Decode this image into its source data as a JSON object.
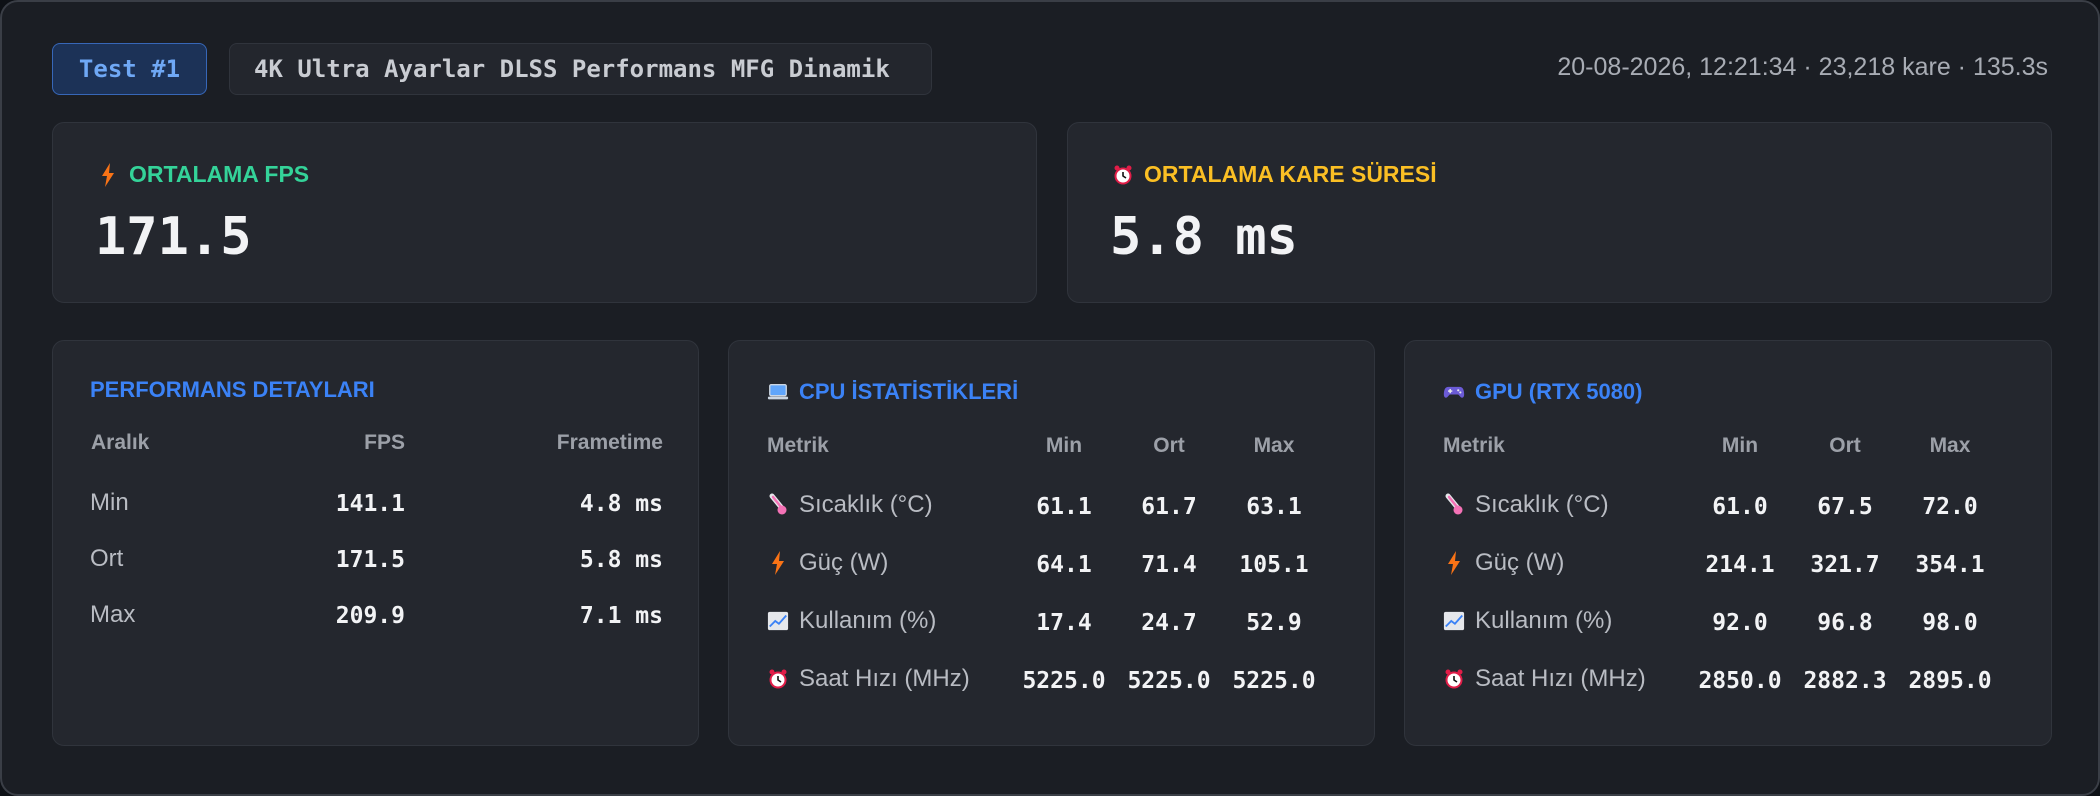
{
  "header": {
    "test_badge": "Test #1",
    "test_title": "4K Ultra Ayarlar DLSS Performans MFG Dinamik",
    "meta": "20-08-2026, 12:21:34 · 23,218 kare · 135.3s"
  },
  "colors": {
    "fps_label": "#34d399",
    "frametime_label": "#fbbf24",
    "section_title": "#3b82f6",
    "bolt": "#f97316",
    "thermo": "#f472b6"
  },
  "summary": {
    "fps": {
      "icon": "bolt-icon",
      "label": "ORTALAMA FPS",
      "value": "171.5"
    },
    "frametime": {
      "icon": "alarm-clock-icon",
      "label": "ORTALAMA KARE SÜRESİ",
      "value": "5.8 ms"
    }
  },
  "performance": {
    "title": "PERFORMANS DETAYLARI",
    "headers": {
      "range": "Aralık",
      "fps": "FPS",
      "frametime": "Frametime"
    },
    "rows": [
      {
        "label": "Min",
        "fps": "141.1",
        "frametime": "4.8 ms"
      },
      {
        "label": "Ort",
        "fps": "171.5",
        "frametime": "5.8 ms"
      },
      {
        "label": "Max",
        "fps": "209.9",
        "frametime": "7.1 ms"
      }
    ]
  },
  "cpu": {
    "icon": "laptop-icon",
    "title": "CPU İSTATİSTİKLERİ",
    "headers": {
      "metric": "Metrik",
      "min": "Min",
      "avg": "Ort",
      "max": "Max"
    },
    "rows": [
      {
        "icon": "thermometer-icon",
        "label": "Sıcaklık (°C)",
        "min": "61.1",
        "avg": "61.7",
        "max": "63.1"
      },
      {
        "icon": "bolt-icon",
        "label": "Güç (W)",
        "min": "64.1",
        "avg": "71.4",
        "max": "105.1"
      },
      {
        "icon": "chart-up-icon",
        "label": "Kullanım (%)",
        "min": "17.4",
        "avg": "24.7",
        "max": "52.9"
      },
      {
        "icon": "alarm-clock-icon",
        "label": "Saat Hızı (MHz)",
        "min": "5225.0",
        "avg": "5225.0",
        "max": "5225.0"
      }
    ]
  },
  "gpu": {
    "icon": "gamepad-icon",
    "title": "GPU (RTX 5080)",
    "headers": {
      "metric": "Metrik",
      "min": "Min",
      "avg": "Ort",
      "max": "Max"
    },
    "rows": [
      {
        "icon": "thermometer-icon",
        "label": "Sıcaklık (°C)",
        "min": "61.0",
        "avg": "67.5",
        "max": "72.0"
      },
      {
        "icon": "bolt-icon",
        "label": "Güç (W)",
        "min": "214.1",
        "avg": "321.7",
        "max": "354.1"
      },
      {
        "icon": "chart-up-icon",
        "label": "Kullanım (%)",
        "min": "92.0",
        "avg": "96.8",
        "max": "98.0"
      },
      {
        "icon": "alarm-clock-icon",
        "label": "Saat Hızı (MHz)",
        "min": "2850.0",
        "avg": "2882.3",
        "max": "2895.0"
      }
    ]
  }
}
